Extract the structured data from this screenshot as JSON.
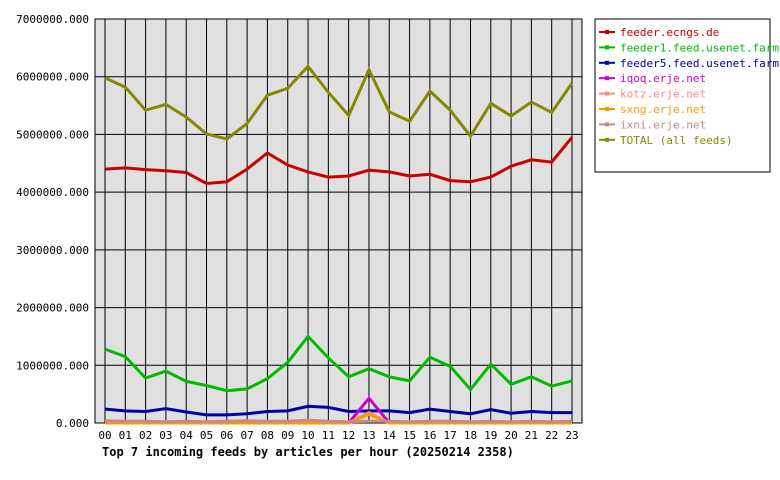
{
  "chart_data": {
    "type": "line",
    "title": "Top 7 incoming feeds by articles per hour (20250214 2358)",
    "xlabel": "",
    "ylabel": "",
    "ylim": [
      0,
      7000000
    ],
    "yticks": [
      "0.000",
      "1000000.000",
      "2000000.000",
      "3000000.000",
      "4000000.000",
      "5000000.000",
      "6000000.000",
      "7000000.000"
    ],
    "categories": [
      "00",
      "01",
      "02",
      "03",
      "04",
      "05",
      "06",
      "07",
      "08",
      "09",
      "10",
      "11",
      "12",
      "13",
      "14",
      "15",
      "16",
      "17",
      "18",
      "19",
      "20",
      "21",
      "22",
      "23"
    ],
    "grid": true,
    "legend_position": "top-right",
    "series": [
      {
        "name": "feeder.ecngs.de",
        "color": "#cc0000",
        "values": [
          4400000,
          4420000,
          4390000,
          4370000,
          4340000,
          4150000,
          4180000,
          4400000,
          4680000,
          4470000,
          4350000,
          4260000,
          4280000,
          4380000,
          4350000,
          4280000,
          4310000,
          4200000,
          4180000,
          4260000,
          4450000,
          4560000,
          4520000,
          4950000
        ]
      },
      {
        "name": "feeder1.feed.usenet.farm",
        "color": "#00bb00",
        "values": [
          1280000,
          1150000,
          780000,
          900000,
          720000,
          650000,
          560000,
          590000,
          770000,
          1050000,
          1500000,
          1130000,
          800000,
          940000,
          800000,
          730000,
          1140000,
          980000,
          580000,
          1020000,
          670000,
          800000,
          640000,
          730000
        ]
      },
      {
        "name": "feeder5.feed.usenet.farm",
        "color": "#0000aa",
        "values": [
          240000,
          210000,
          200000,
          250000,
          190000,
          140000,
          140000,
          160000,
          200000,
          210000,
          290000,
          270000,
          200000,
          210000,
          210000,
          180000,
          240000,
          200000,
          160000,
          230000,
          170000,
          200000,
          180000,
          180000
        ]
      },
      {
        "name": "iqoq.erje.net",
        "color": "#cc00cc",
        "values": [
          0,
          0,
          0,
          0,
          0,
          0,
          0,
          0,
          0,
          0,
          0,
          0,
          0,
          430000,
          0,
          0,
          0,
          0,
          0,
          0,
          0,
          0,
          0,
          0
        ]
      },
      {
        "name": "kotz.erje.net",
        "color": "#ff8888",
        "values": [
          0,
          0,
          0,
          0,
          0,
          0,
          0,
          0,
          0,
          0,
          0,
          0,
          0,
          180000,
          0,
          0,
          0,
          0,
          0,
          0,
          0,
          0,
          0,
          0
        ]
      },
      {
        "name": "sxng.erje.net",
        "color": "#ff9900",
        "values": [
          0,
          0,
          0,
          0,
          0,
          0,
          0,
          0,
          0,
          0,
          0,
          0,
          0,
          150000,
          0,
          0,
          0,
          0,
          0,
          0,
          0,
          0,
          0,
          0
        ]
      },
      {
        "name": "ixni.erje.net",
        "color": "#cc8888",
        "values": [
          40000,
          30000,
          30000,
          20000,
          30000,
          20000,
          30000,
          40000,
          30000,
          30000,
          50000,
          30000,
          20000,
          30000,
          30000,
          20000,
          30000,
          30000,
          20000,
          30000,
          20000,
          30000,
          20000,
          30000
        ]
      },
      {
        "name": "TOTAL (all feeds)",
        "color": "#888800",
        "values": [
          5980000,
          5820000,
          5420000,
          5520000,
          5300000,
          5010000,
          4920000,
          5190000,
          5680000,
          5800000,
          6180000,
          5730000,
          5330000,
          6120000,
          5390000,
          5230000,
          5750000,
          5420000,
          4970000,
          5540000,
          5320000,
          5560000,
          5380000,
          5890000
        ]
      }
    ]
  }
}
